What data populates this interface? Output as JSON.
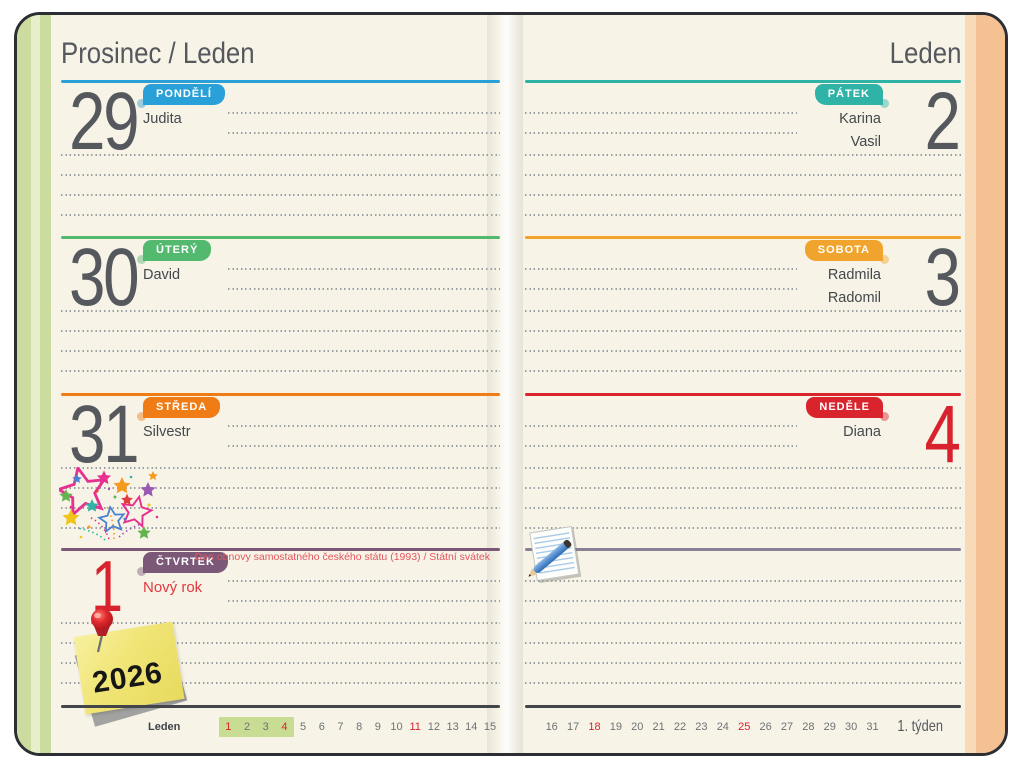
{
  "left_page": {
    "header": "Prosinec / Leden",
    "days": [
      {
        "number": "29",
        "day_label": "PONDĚLÍ",
        "names": [
          "Judita"
        ]
      },
      {
        "number": "30",
        "day_label": "ÚTERÝ",
        "names": [
          "David"
        ]
      },
      {
        "number": "31",
        "day_label": "STŘEDA",
        "names": [
          "Silvestr"
        ]
      },
      {
        "number": "1",
        "day_label": "ČTVRTEK",
        "names": [
          "Nový rok"
        ],
        "holiday_note": "Den obnovy samostatného českého státu (1993) / Státní svátek"
      }
    ],
    "mini_calendar": {
      "month_label": "Leden",
      "days": [
        1,
        2,
        3,
        4,
        5,
        6,
        7,
        8,
        9,
        10,
        11,
        12,
        13,
        14,
        15
      ],
      "red_days": [
        1,
        4,
        11
      ],
      "highlighted_days": [
        1,
        2,
        3,
        4
      ]
    }
  },
  "right_page": {
    "header": "Leden",
    "days": [
      {
        "number": "2",
        "day_label": "PÁTEK",
        "names": [
          "Karina",
          "Vasil"
        ]
      },
      {
        "number": "3",
        "day_label": "SOBOTA",
        "names": [
          "Radmila",
          "Radomil"
        ]
      },
      {
        "number": "4",
        "day_label": "NEDĚLE",
        "names": [
          "Diana"
        ]
      }
    ],
    "mini_calendar": {
      "days": [
        16,
        17,
        18,
        19,
        20,
        21,
        22,
        23,
        24,
        25,
        26,
        27,
        28,
        29,
        30,
        31
      ],
      "red_days": [
        18,
        25
      ]
    },
    "week_label": "1. týden"
  },
  "sticky_note": {
    "year_text": "2026"
  },
  "decorations": [
    "confetti-stars",
    "red-pushpin",
    "notepad-with-pen"
  ],
  "colors": {
    "monday_blue": "#2aa0d8",
    "tuesday_green": "#53b96f",
    "wednesday_orange": "#ef7c15",
    "thursday_purple": "#7c5878",
    "friday_teal": "#2eb3a6",
    "saturday_amber": "#f1a42d",
    "sunday_red": "#d9242e",
    "holiday_text_red": "#e2565e",
    "big_number_gray": "#55595e",
    "page_cream": "#f7f3e7",
    "left_edge_green": "#ccdc9f",
    "right_edge_orange": "#f6c192",
    "mini_calendar_highlight_green": "#c8dc94",
    "sticky_note_yellow": "#f0e575"
  }
}
